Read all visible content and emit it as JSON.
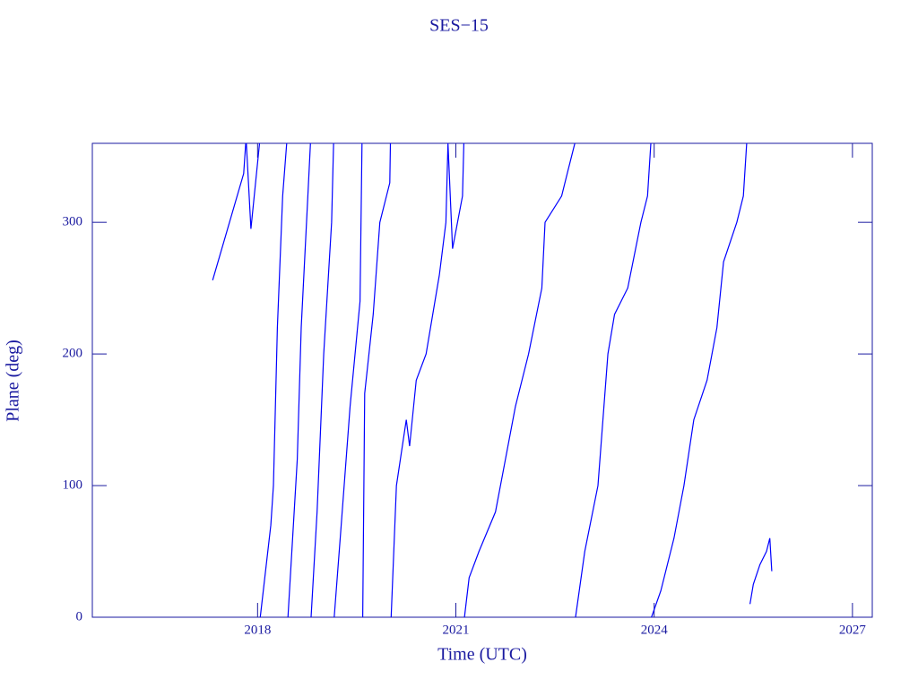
{
  "chart_data": {
    "type": "line",
    "title": "SES−15",
    "x_label": "Time (UTC)",
    "y_label": "Plane (deg)",
    "x": [
      2017.32,
      2017.79,
      2017.82,
      null,
      2017.83,
      2017.9,
      2018.03,
      null,
      2018.04,
      2018.2,
      2018.24,
      2018.3,
      2018.38,
      2018.44,
      null,
      2018.46,
      2018.6,
      2018.66,
      2018.76,
      2018.8,
      null,
      2018.81,
      2018.9,
      2019.0,
      2019.12,
      2019.15,
      null,
      2019.16,
      2019.25,
      2019.4,
      2019.55,
      2019.58,
      null,
      2019.59,
      2019.62,
      2019.75,
      2019.85,
      2020.0,
      2020.01,
      null,
      2020.02,
      2020.1,
      2020.25,
      2020.3,
      2020.4,
      2020.55,
      2020.75,
      2020.85,
      2020.88,
      2020.95,
      2021.1,
      2021.12,
      null,
      2021.13,
      2021.2,
      2021.35,
      2021.6,
      2021.75,
      2021.9,
      2022.1,
      2022.3,
      2022.35,
      2022.6,
      2022.7,
      2022.8,
      null,
      2022.81,
      2022.95,
      2023.15,
      2023.3,
      2023.4,
      2023.6,
      2023.8,
      2023.9,
      2023.95,
      null,
      2023.96,
      2024.1,
      2024.3,
      2024.45,
      2024.6,
      2024.8,
      2024.95,
      2025.05,
      2025.25,
      2025.35,
      2025.4,
      null,
      2025.45,
      2025.5,
      2025.6,
      2025.7,
      2025.75,
      2025.78
    ],
    "series": [
      {
        "color": "#0000ff",
        "values": [
          256,
          337,
          360,
          null,
          360,
          295,
          360,
          null,
          0,
          70,
          100,
          220,
          320,
          360,
          null,
          0,
          120,
          220,
          320,
          360,
          null,
          0,
          80,
          200,
          300,
          360,
          null,
          0,
          60,
          160,
          240,
          360,
          null,
          0,
          170,
          230,
          300,
          330,
          360,
          null,
          0,
          100,
          150,
          130,
          180,
          200,
          260,
          300,
          360,
          280,
          320,
          360,
          null,
          0,
          30,
          50,
          80,
          120,
          160,
          200,
          250,
          300,
          320,
          340,
          360,
          null,
          0,
          50,
          100,
          200,
          230,
          250,
          300,
          320,
          360,
          null,
          0,
          20,
          60,
          100,
          150,
          180,
          220,
          270,
          300,
          320,
          360,
          null,
          10,
          25,
          40,
          50,
          60,
          35
        ]
      }
    ],
    "xlim": [
      2015.5,
      2027.3
    ],
    "xticks": [
      2018,
      2021,
      2024,
      2027
    ],
    "ylim": [
      0,
      360
    ],
    "yticks": [
      0,
      100,
      200,
      300
    ]
  }
}
